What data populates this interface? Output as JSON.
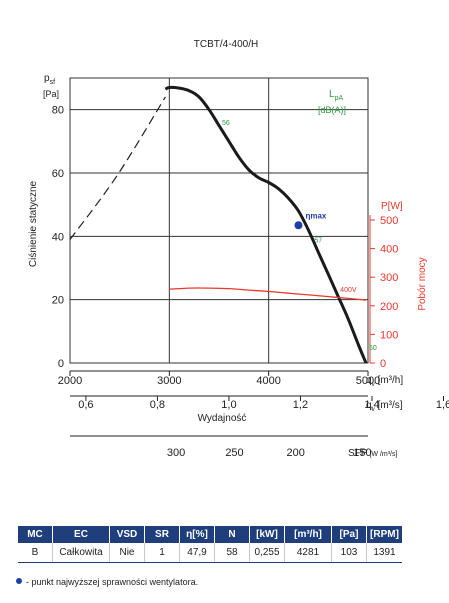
{
  "chart_data": {
    "type": "line",
    "title": "TCBT/4-400/H",
    "ylabel": "Ciśnienie statyczne",
    "y_symbol": "p",
    "y_symbol_sub": "sf",
    "y_unit": "[Pa]",
    "ylim": [
      0,
      90
    ],
    "yticks": [
      0,
      20,
      40,
      60,
      80
    ],
    "xlabel": "Wydajność",
    "xlim": [
      2000,
      5000
    ],
    "x_m3h_ticks": [
      2000,
      3000,
      4000,
      5000
    ],
    "x_m3h_label": "q",
    "x_m3h_unit": "[m³/h]",
    "x_m3s_ticks": [
      "0,6",
      "0,8",
      "1,0",
      "1,2",
      "1,4",
      "1,6"
    ],
    "x_m3s_label": "q",
    "x_m3s_unit": "[m³/s]",
    "sfp_ticks": [
      300,
      250,
      200,
      150
    ],
    "sfp_label": "SFP",
    "sfp_unit": "[W /m³/s]",
    "right_axis": {
      "label": "Pobór mocy",
      "symbol": "P[W]",
      "ticks": [
        0,
        100,
        200,
        300,
        400,
        500
      ]
    },
    "sound_label": "L",
    "sound_label_sub": "pA",
    "sound_unit": "[dB(A)]",
    "sound_markers": [
      {
        "label": "56",
        "x": 3520,
        "y": 77
      },
      {
        "label": "57",
        "x": 4450,
        "y": 40
      },
      {
        "label": "60",
        "x": 5000,
        "y": 6
      }
    ],
    "series": [
      {
        "role": "pressure-dashed",
        "x": [
          2000,
          2470,
          2960
        ],
        "y": [
          39,
          59,
          84
        ]
      },
      {
        "role": "pressure",
        "x": [
          2960,
          3000,
          3100,
          3200,
          3300,
          3400,
          3500,
          3600,
          3700,
          3800,
          3900,
          4000,
          4100,
          4200,
          4300,
          4400,
          4500,
          4600,
          4700,
          4800,
          4900,
          4980
        ],
        "y": [
          86.5,
          87,
          86.8,
          86,
          84,
          80,
          75,
          70,
          65,
          61,
          58.5,
          57,
          55,
          52,
          48,
          42,
          35,
          28,
          21,
          14,
          6,
          0
        ]
      },
      {
        "role": "power",
        "name": "400V",
        "axis": "right",
        "x": [
          3000,
          3200,
          3400,
          3600,
          3800,
          4000,
          4200,
          4400,
          4600,
          4800,
          4980
        ],
        "y": [
          258,
          262,
          262,
          260,
          255,
          250,
          244,
          238,
          232,
          226,
          220
        ]
      }
    ],
    "efficiency_point": {
      "label": "ηmax",
      "x": 4300,
      "y": 43.5
    },
    "power_label": "400V"
  },
  "table": {
    "headers": [
      "MC",
      "EC",
      "VSD",
      "SR",
      "η[%]",
      "N",
      "[kW]",
      "[m³/h]",
      "[Pa]",
      "[RPM]"
    ],
    "row": [
      "B",
      "Całkowita",
      "Nie",
      "1",
      "47,9",
      "58",
      "0,255",
      "4281",
      "103",
      "1391"
    ]
  },
  "footnote": "- punkt najwyższej sprawności wentylatora."
}
